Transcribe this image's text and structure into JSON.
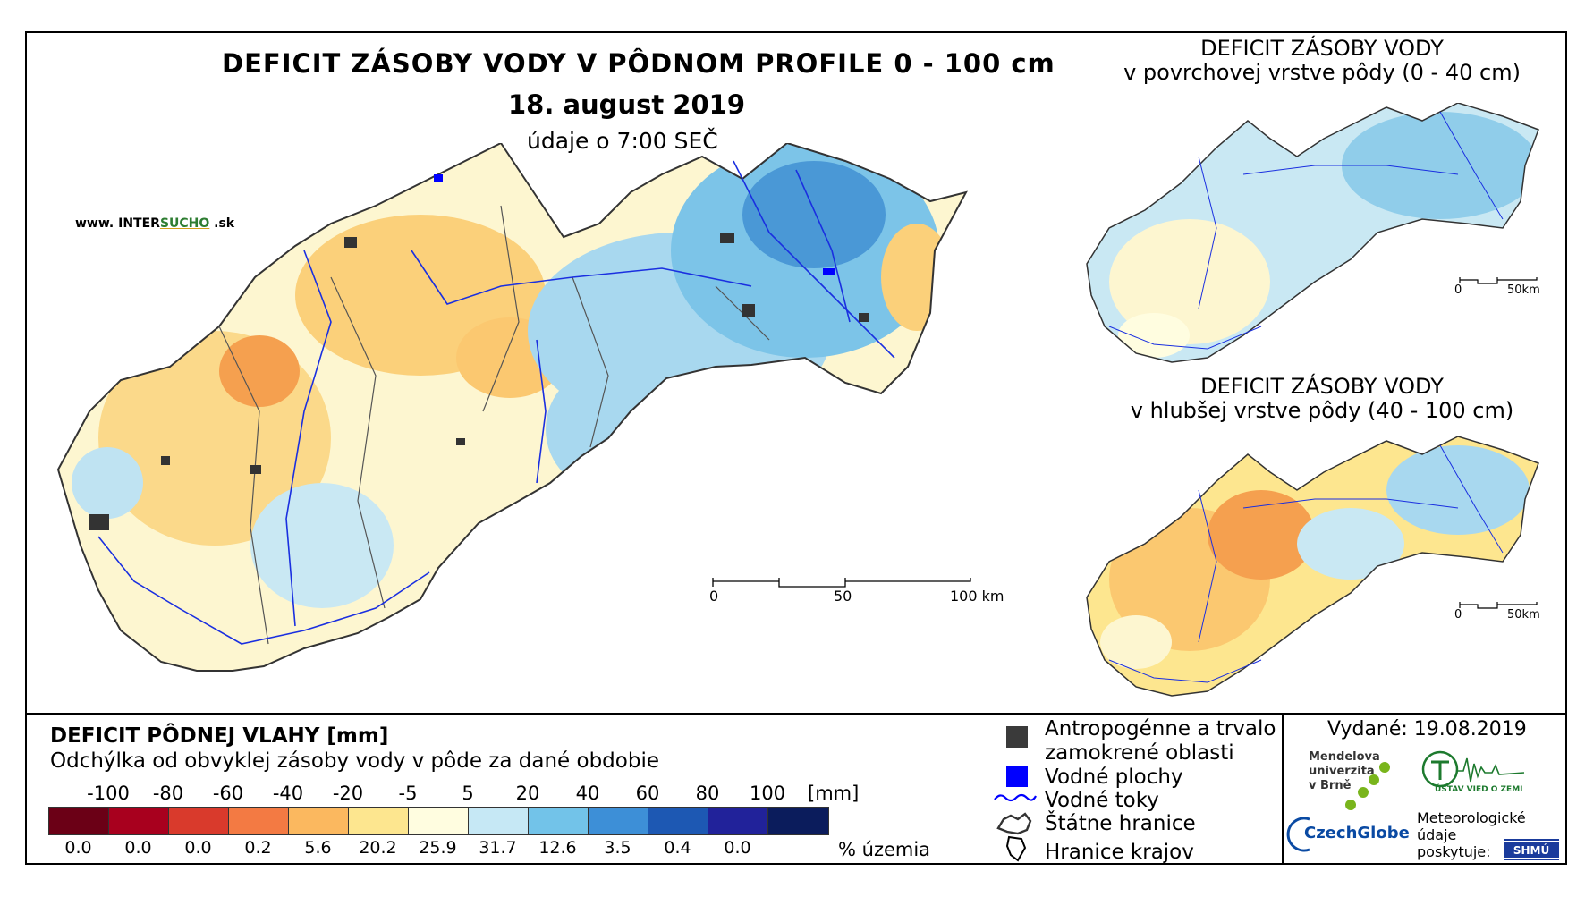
{
  "title": "DEFICIT ZÁSOBY VODY V PÔDNOM PROFILE 0 - 100 cm",
  "date": "18. august 2019",
  "time": "údaje o 7:00 SEČ",
  "website": {
    "prefix": "www. ",
    "brand1": "INTER",
    "brand2": "SUCHO",
    "suffix": " .sk"
  },
  "insets": [
    {
      "title_line1": "DEFICIT ZÁSOBY VODY",
      "title_line2": "v povrchovej vrstve pôdy (0 - 40 cm)"
    },
    {
      "title_line1": "DEFICIT ZÁSOBY VODY",
      "title_line2": "v hlubšej vrstve pôdy (40 - 100 cm)"
    }
  ],
  "scalebar_main": {
    "labels": [
      "0",
      "50",
      "100 km"
    ]
  },
  "scalebar_inset": {
    "labels": [
      "0",
      "50km"
    ]
  },
  "legend": {
    "title": "DEFICIT PÔDNEJ VLAHY [mm]",
    "subtitle": "Odchýlka od obvyklej zásoby vody v pôde za dané obdobie",
    "unit": "[mm]",
    "pct_unit": "% územia",
    "class_labels": [
      "-100",
      "-80",
      "-60",
      "-40",
      "-20",
      "-5",
      "5",
      "20",
      "40",
      "60",
      "80",
      "100"
    ],
    "colors": [
      "#6b0016",
      "#a8001e",
      "#d93a2c",
      "#f37a43",
      "#fbb85f",
      "#fde68f",
      "#fffde0",
      "#c6e8f5",
      "#72c3e9",
      "#3d8fd7",
      "#1d58b3",
      "#21229a",
      "#0b1c5c"
    ],
    "percentages": [
      "0.0",
      "0.0",
      "0.0",
      "0.2",
      "5.6",
      "20.2",
      "25.9",
      "31.7",
      "12.6",
      "3.5",
      "0.4",
      "0.0"
    ]
  },
  "symbols": [
    {
      "label_line1": "Antropogénne a trvalo",
      "label_line2": "zamokrené oblasti",
      "color": "#3a3a3a"
    },
    {
      "label_line1": "Vodné plochy",
      "color": "#0000ff"
    },
    {
      "label_line1": "Vodné toky",
      "color": "#0000ff"
    },
    {
      "label_line1": "Štátne hranice",
      "color": "#333333"
    },
    {
      "label_line1": "Hranice krajov",
      "color": "#000000"
    }
  ],
  "issued": "Vydané: 19.08.2019",
  "logos": {
    "mendel": [
      "Mendelova",
      "univerzita",
      "v Brně"
    ],
    "czechglobe": "CzechGlobe",
    "uvz": "ÚSTAV VIED O ZEMI",
    "meteo": [
      "Meteorologické",
      "údaje",
      "poskytuje:"
    ],
    "shmu": "SHMÚ"
  }
}
